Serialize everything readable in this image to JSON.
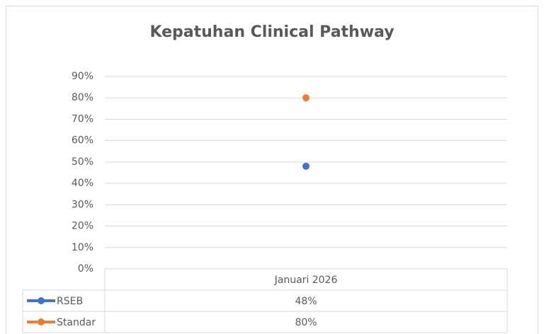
{
  "chart_data": {
    "type": "line",
    "title": "Kepatuhan Clinical Pathway",
    "categories": [
      "Januari 2026"
    ],
    "series": [
      {
        "name": "RSEB",
        "color": "#4472c4",
        "values": [
          48
        ],
        "value_labels": [
          "48%"
        ]
      },
      {
        "name": "Standar",
        "color": "#ed7d31",
        "values": [
          80
        ],
        "value_labels": [
          "80%"
        ]
      }
    ],
    "ylim": [
      0,
      90
    ],
    "yticks": [
      {
        "value": 0,
        "label": "0%"
      },
      {
        "value": 10,
        "label": "10%"
      },
      {
        "value": 20,
        "label": "20%"
      },
      {
        "value": 30,
        "label": "30%"
      },
      {
        "value": 40,
        "label": "40%"
      },
      {
        "value": 50,
        "label": "50%"
      },
      {
        "value": 60,
        "label": "60%"
      },
      {
        "value": 70,
        "label": "70%"
      },
      {
        "value": 80,
        "label": "80%"
      },
      {
        "value": 90,
        "label": "90%"
      }
    ],
    "grid": true
  }
}
